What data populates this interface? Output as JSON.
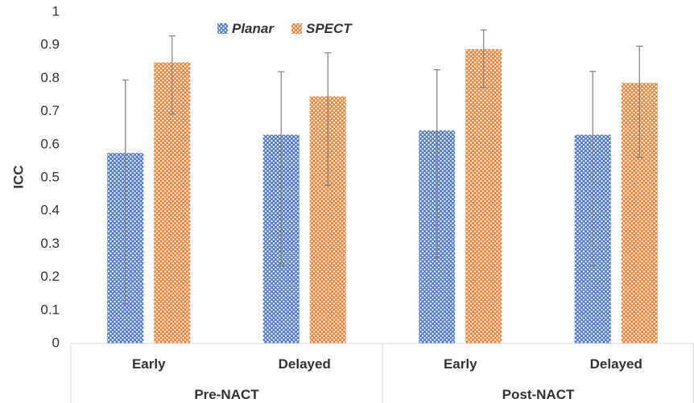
{
  "chart_data": {
    "type": "bar",
    "ylabel": "ICC",
    "xlabel": "",
    "ylim": [
      0,
      1
    ],
    "yticks": [
      "0",
      "0.1",
      "0.2",
      "0.3",
      "0.4",
      "0.5",
      "0.6",
      "0.7",
      "0.8",
      "0.9",
      "1"
    ],
    "categories": [
      "Early",
      "Delayed",
      "Early",
      "Delayed"
    ],
    "groups": [
      {
        "label": "Pre-NACT",
        "categories": [
          "Early",
          "Delayed"
        ]
      },
      {
        "label": "Post-NACT",
        "categories": [
          "Early",
          "Delayed"
        ]
      }
    ],
    "series": [
      {
        "name": "Planar",
        "color": "#4472C4",
        "values": [
          0.575,
          0.63,
          0.643,
          0.63
        ],
        "error_low": [
          0.12,
          0.235,
          0.26,
          0.235
        ],
        "error_high": [
          0.795,
          0.82,
          0.826,
          0.821
        ]
      },
      {
        "name": "SPECT",
        "color": "#ED7D31",
        "values": [
          0.848,
          0.746,
          0.888,
          0.786
        ],
        "error_low": [
          0.692,
          0.477,
          0.772,
          0.562
        ],
        "error_high": [
          0.928,
          0.877,
          0.946,
          0.897
        ]
      }
    ],
    "grid": false,
    "legend_position": "top-left",
    "pattern": "crosshatch"
  }
}
